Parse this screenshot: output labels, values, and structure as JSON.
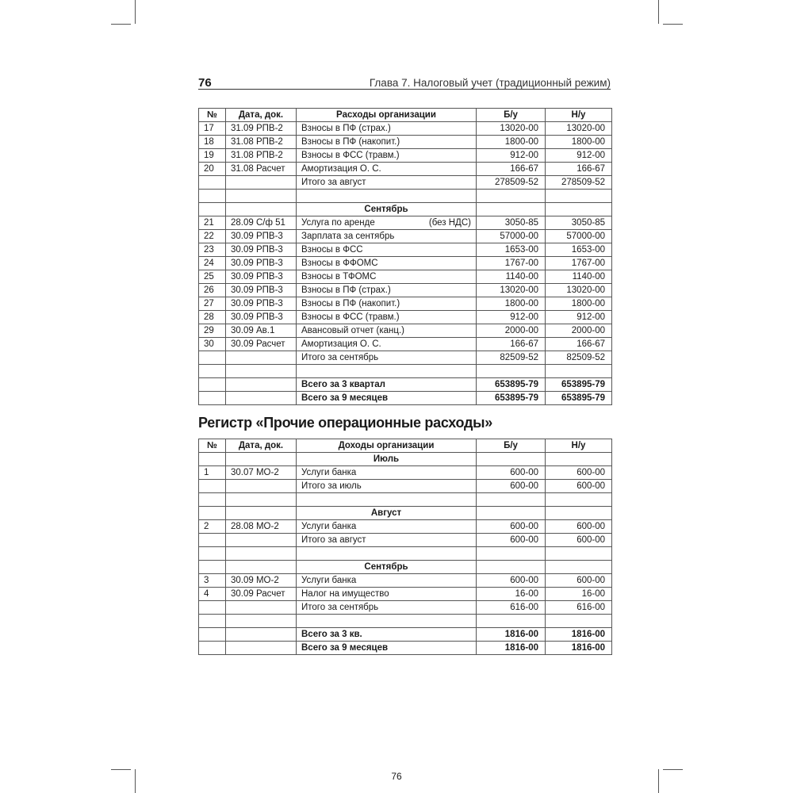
{
  "running_head": {
    "page_number": "76",
    "chapter": "Глава 7. Налоговый учет (традиционный режим)"
  },
  "table1": {
    "headers": [
      "№",
      "Дата, док.",
      "Расходы организации",
      "Б/у",
      "Н/у"
    ],
    "rows": [
      {
        "n": "17",
        "date": "31.09 РПВ-2",
        "desc": "Взносы в ПФ (страх.)",
        "bu": "13020-00",
        "nu": "13020-00"
      },
      {
        "n": "18",
        "date": "31.08 РПВ-2",
        "desc": "Взносы в ПФ (накопит.)",
        "bu": "1800-00",
        "nu": "1800-00"
      },
      {
        "n": "19",
        "date": "31.08 РПВ-2",
        "desc": "Взносы в ФСС (травм.)",
        "bu": "912-00",
        "nu": "912-00"
      },
      {
        "n": "20",
        "date": "31.08 Расчет",
        "desc": "Амортизация О. С.",
        "bu": "166-67",
        "nu": "166-67"
      },
      {
        "n": "",
        "date": "",
        "desc": "Итого за август",
        "bu": "278509-52",
        "nu": "278509-52"
      },
      {
        "n": "",
        "date": "",
        "desc": "",
        "bu": "",
        "nu": ""
      },
      {
        "type": "section",
        "desc": "Сентябрь"
      },
      {
        "n": "21",
        "date": "28.09 С/ф 51",
        "desc": "Услуга по аренде",
        "note": "(без НДС)",
        "bu": "3050-85",
        "nu": "3050-85"
      },
      {
        "n": "22",
        "date": "30.09 РПВ-3",
        "desc": "Зарплата за сентябрь",
        "bu": "57000-00",
        "nu": "57000-00"
      },
      {
        "n": "23",
        "date": "30.09 РПВ-3",
        "desc": "Взносы в ФСС",
        "bu": "1653-00",
        "nu": "1653-00"
      },
      {
        "n": "24",
        "date": "30.09 РПВ-3",
        "desc": "Взносы в ФФОМС",
        "bu": "1767-00",
        "nu": "1767-00"
      },
      {
        "n": "25",
        "date": "30.09 РПВ-3",
        "desc": "Взносы в ТФОМС",
        "bu": "1140-00",
        "nu": "1140-00"
      },
      {
        "n": "26",
        "date": "30.09 РПВ-3",
        "desc": "Взносы в ПФ (страх.)",
        "bu": "13020-00",
        "nu": "13020-00"
      },
      {
        "n": "27",
        "date": "30.09 РПВ-3",
        "desc": "Взносы в ПФ (накопит.)",
        "bu": "1800-00",
        "nu": "1800-00"
      },
      {
        "n": "28",
        "date": "30.09 РПВ-3",
        "desc": "Взносы в ФСС (травм.)",
        "bu": "912-00",
        "nu": "912-00"
      },
      {
        "n": "29",
        "date": "30.09 Ав.1",
        "desc": "Авансовый отчет (канц.)",
        "bu": "2000-00",
        "nu": "2000-00"
      },
      {
        "n": "30",
        "date": "30.09 Расчет",
        "desc": "Амортизация О. С.",
        "bu": "166-67",
        "nu": "166-67"
      },
      {
        "n": "",
        "date": "",
        "desc": "Итого за сентябрь",
        "bu": "82509-52",
        "nu": "82509-52"
      },
      {
        "n": "",
        "date": "",
        "desc": "",
        "bu": "",
        "nu": ""
      },
      {
        "type": "bold",
        "n": "",
        "date": "",
        "desc": "Всего за 3 квартал",
        "bu": "653895-79",
        "nu": "653895-79"
      },
      {
        "type": "bold",
        "n": "",
        "date": "",
        "desc": "Всего за 9 месяцев",
        "bu": "653895-79",
        "nu": "653895-79"
      }
    ]
  },
  "section_title": "Регистр «Прочие операционные расходы»",
  "table2": {
    "headers": [
      "№",
      "Дата, док.",
      "Доходы организации",
      "Б/у",
      "Н/у"
    ],
    "rows": [
      {
        "type": "section",
        "desc": "Июль"
      },
      {
        "n": "1",
        "date": "30.07 МО-2",
        "desc": "Услуги банка",
        "bu": "600-00",
        "nu": "600-00"
      },
      {
        "n": "",
        "date": "",
        "desc": "Итого за июль",
        "bu": "600-00",
        "nu": "600-00"
      },
      {
        "n": "",
        "date": "",
        "desc": "",
        "bu": "",
        "nu": ""
      },
      {
        "type": "section",
        "desc": "Август"
      },
      {
        "n": "2",
        "date": "28.08 МО-2",
        "desc": "Услуги банка",
        "bu": "600-00",
        "nu": "600-00"
      },
      {
        "n": "",
        "date": "",
        "desc": "Итого за август",
        "bu": "600-00",
        "nu": "600-00"
      },
      {
        "n": "",
        "date": "",
        "desc": "",
        "bu": "",
        "nu": ""
      },
      {
        "type": "section",
        "desc": "Сентябрь"
      },
      {
        "n": "3",
        "date": "30.09 МО-2",
        "desc": "Услуги банка",
        "bu": "600-00",
        "nu": "600-00"
      },
      {
        "n": "4",
        "date": "30.09 Расчет",
        "desc": "Налог на имущество",
        "bu": "16-00",
        "nu": "16-00"
      },
      {
        "n": "",
        "date": "",
        "desc": "Итого за сентябрь",
        "bu": "616-00",
        "nu": "616-00"
      },
      {
        "n": "",
        "date": "",
        "desc": "",
        "bu": "",
        "nu": ""
      },
      {
        "type": "bold",
        "n": "",
        "date": "",
        "desc": "Всего за 3 кв.",
        "bu": "1816-00",
        "nu": "1816-00"
      },
      {
        "type": "bold",
        "n": "",
        "date": "",
        "desc": "Всего за 9 месяцев",
        "bu": "1816-00",
        "nu": "1816-00"
      }
    ]
  },
  "footer": {
    "page_number": "76"
  }
}
